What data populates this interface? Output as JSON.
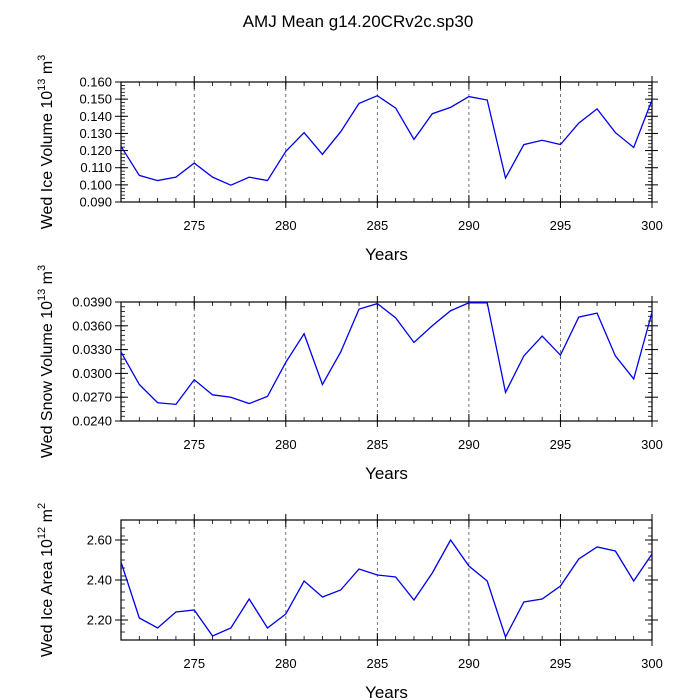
{
  "title": "AMJ Mean g14.20CRv2c.sp30",
  "colors": {
    "line": "#0000ee",
    "axis": "#000000",
    "grid": "#555555"
  },
  "chart_data": [
    {
      "type": "line",
      "ylabel": "Wed Ice Volume 10",
      "ylabel_sup": "13",
      "ylabel_unit": " m",
      "ylabel_unit_sup": "3",
      "xlabel": "Years",
      "xlim": [
        271,
        300
      ],
      "ylim": [
        0.09,
        0.16
      ],
      "xticks": [
        275,
        280,
        285,
        290,
        295,
        300
      ],
      "xtick_labels": [
        "275",
        "280",
        "285",
        "290",
        "295",
        "300"
      ],
      "yticks": [
        0.09,
        0.1,
        0.11,
        0.12,
        0.13,
        0.14,
        0.15,
        0.16
      ],
      "ytick_labels": [
        "0.090",
        "0.100",
        "0.110",
        "0.120",
        "0.130",
        "0.140",
        "0.150",
        "0.160"
      ],
      "yminor_step": 0.002,
      "vgrid": [
        275,
        280,
        285,
        290,
        295
      ],
      "x": [
        271,
        272,
        273,
        274,
        275,
        276,
        277,
        278,
        279,
        280,
        281,
        282,
        283,
        284,
        285,
        286,
        287,
        288,
        289,
        290,
        291,
        292,
        293,
        294,
        295,
        296,
        297,
        298,
        299,
        300
      ],
      "values": [
        0.1225,
        0.1055,
        0.1025,
        0.1045,
        0.1127,
        0.1045,
        0.0998,
        0.1045,
        0.1025,
        0.1195,
        0.1305,
        0.1178,
        0.131,
        0.1475,
        0.152,
        0.1448,
        0.1265,
        0.1415,
        0.1452,
        0.1515,
        0.1495,
        0.104,
        0.1235,
        0.126,
        0.1235,
        0.136,
        0.1443,
        0.1305,
        0.1218,
        0.1495
      ]
    },
    {
      "type": "line",
      "ylabel": "Wed Snow Volume 10",
      "ylabel_sup": "13",
      "ylabel_unit": " m",
      "ylabel_unit_sup": "3",
      "xlabel": "Years",
      "xlim": [
        271,
        300
      ],
      "ylim": [
        0.024,
        0.039
      ],
      "xticks": [
        275,
        280,
        285,
        290,
        295,
        300
      ],
      "xtick_labels": [
        "275",
        "280",
        "285",
        "290",
        "295",
        "300"
      ],
      "yticks": [
        0.024,
        0.027,
        0.03,
        0.033,
        0.036,
        0.039
      ],
      "ytick_labels": [
        "0.0240",
        "0.0270",
        "0.0300",
        "0.0330",
        "0.0360",
        "0.0390"
      ],
      "yminor_step": 0.0006,
      "vgrid": [
        275,
        280,
        285,
        290,
        295
      ],
      "x": [
        271,
        272,
        273,
        274,
        275,
        276,
        277,
        278,
        279,
        280,
        281,
        282,
        283,
        284,
        285,
        286,
        287,
        288,
        289,
        290,
        291,
        292,
        293,
        294,
        295,
        296,
        297,
        298,
        299,
        300
      ],
      "values": [
        0.0327,
        0.0286,
        0.0263,
        0.0261,
        0.0292,
        0.0273,
        0.027,
        0.0262,
        0.0271,
        0.0314,
        0.035,
        0.0286,
        0.0327,
        0.0381,
        0.0388,
        0.037,
        0.0339,
        0.036,
        0.0379,
        0.0389,
        0.0389,
        0.0276,
        0.0322,
        0.0347,
        0.0323,
        0.0371,
        0.0376,
        0.0322,
        0.0293,
        0.0377
      ]
    },
    {
      "type": "line",
      "ylabel": "Wed Ice Area 10",
      "ylabel_sup": "12",
      "ylabel_unit": " m",
      "ylabel_unit_sup": "2",
      "xlabel": "Years",
      "xlim": [
        271,
        300
      ],
      "ylim": [
        2.1,
        2.7
      ],
      "xticks": [
        275,
        280,
        285,
        290,
        295,
        300
      ],
      "xtick_labels": [
        "275",
        "280",
        "285",
        "290",
        "295",
        "300"
      ],
      "yticks": [
        2.2,
        2.4,
        2.6
      ],
      "ytick_labels": [
        "2.20",
        "2.40",
        "2.60"
      ],
      "yminor_step": 0.04,
      "vgrid": [
        275,
        280,
        285,
        290,
        295
      ],
      "x": [
        271,
        272,
        273,
        274,
        275,
        276,
        277,
        278,
        279,
        280,
        281,
        282,
        283,
        284,
        285,
        286,
        287,
        288,
        289,
        290,
        291,
        292,
        293,
        294,
        295,
        296,
        297,
        298,
        299,
        300
      ],
      "values": [
        2.49,
        2.21,
        2.16,
        2.24,
        2.25,
        2.12,
        2.16,
        2.305,
        2.16,
        2.23,
        2.395,
        2.315,
        2.35,
        2.455,
        2.425,
        2.415,
        2.3,
        2.435,
        2.6,
        2.47,
        2.395,
        2.115,
        2.29,
        2.305,
        2.37,
        2.505,
        2.565,
        2.545,
        2.395,
        2.53
      ]
    }
  ]
}
